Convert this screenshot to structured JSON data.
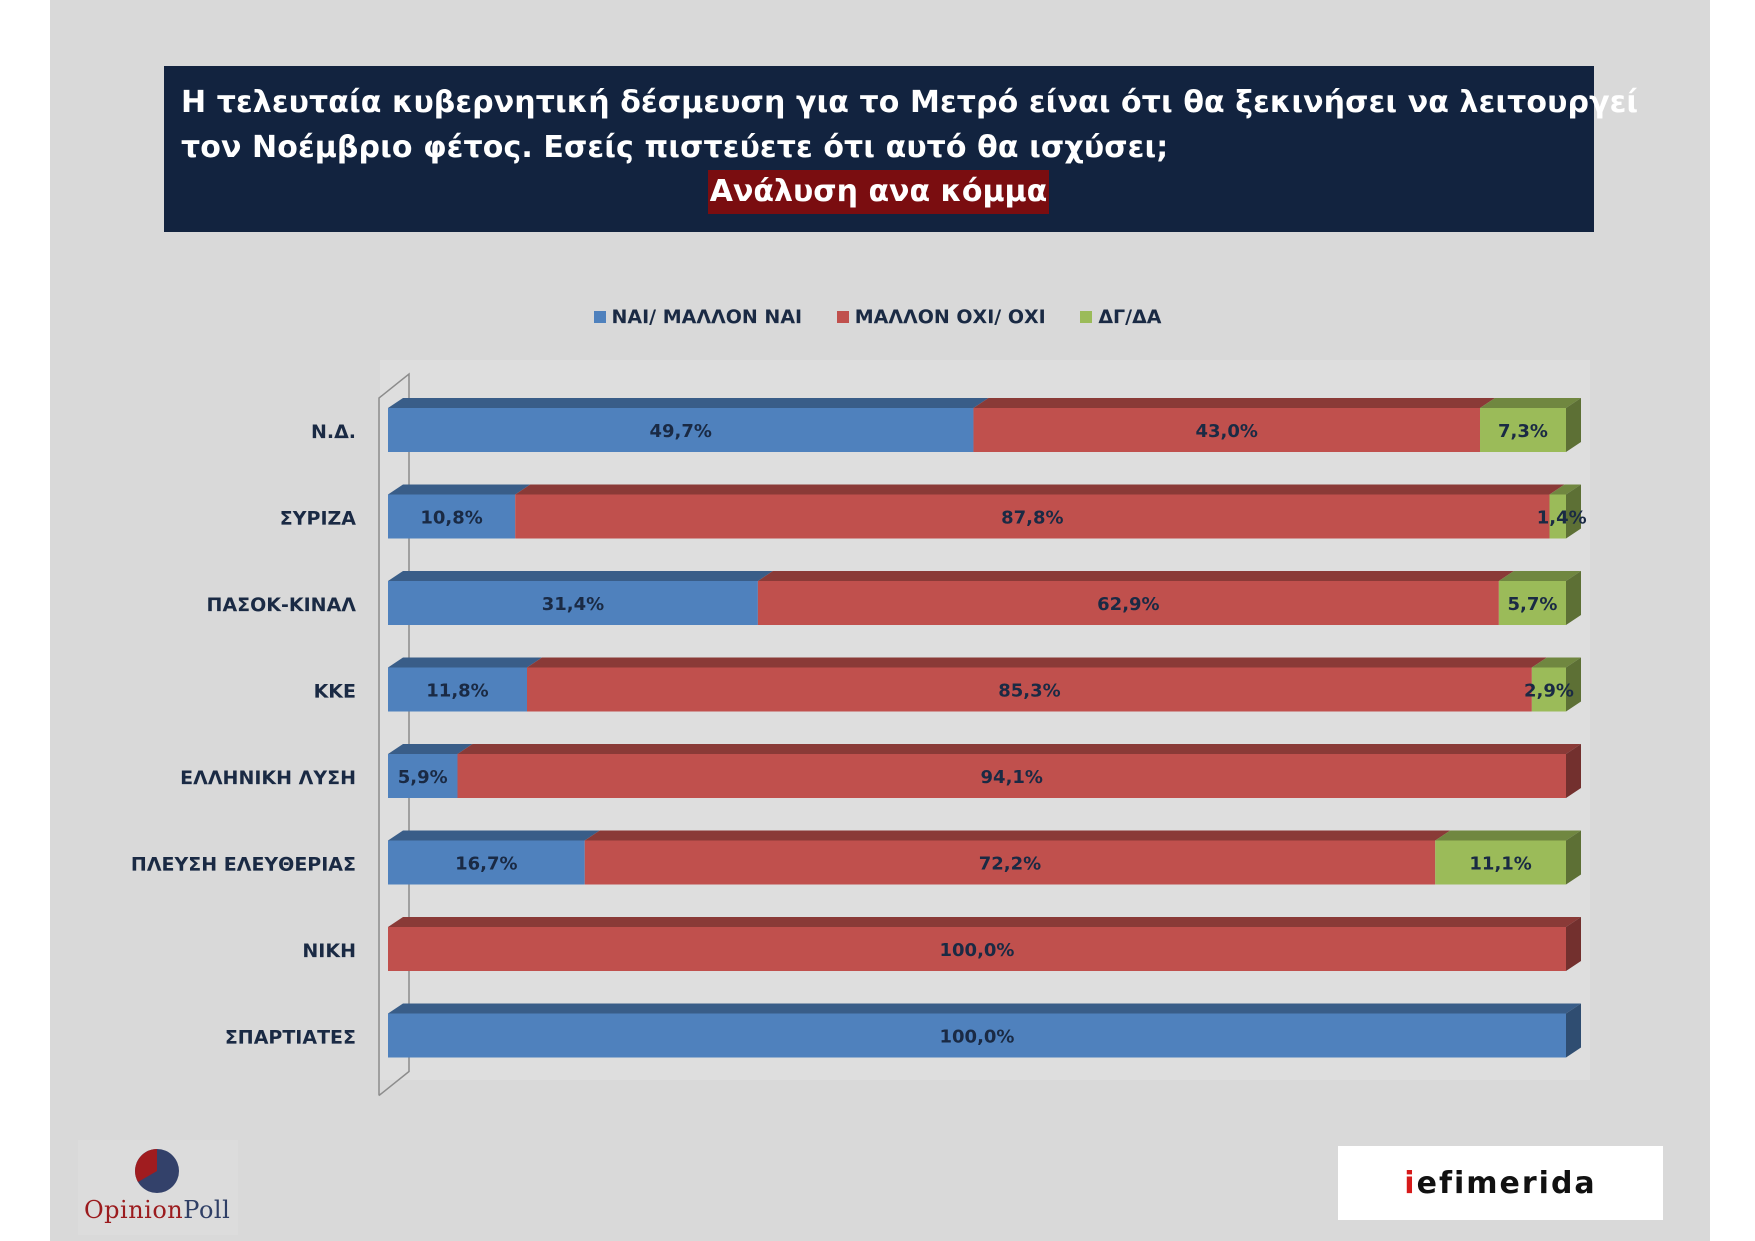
{
  "title": {
    "line1": "Η τελευταία κυβερνητική δέσμευση για το Μετρό είναι ότι θα ξεκινήσει να λειτουργεί",
    "line2": "τον Νοέμβριο φέτος. Εσείς πιστεύετε ότι αυτό θα ισχύσει;",
    "subtitle": "Ανάλυση ανα κόμμα"
  },
  "colors": {
    "yes": "#4f81bd",
    "no": "#c0504d",
    "dk": "#9bbb59",
    "title_bg": "#12233f",
    "subtitle_bg": "#7a0d10",
    "label_text": "#1a2a44"
  },
  "chart_data": {
    "type": "bar",
    "orientation": "horizontal",
    "stacked": "percent",
    "categories": [
      "Ν.Δ.",
      "ΣΥΡΙΖΑ",
      "ΠΑΣΟΚ-ΚΙΝΑΛ",
      "ΚΚΕ",
      "ΕΛΛΗΝΙΚΗ ΛΥΣΗ",
      "ΠΛΕΥΣΗ ΕΛΕΥΘΕΡΙΑΣ",
      "ΝΙΚΗ",
      "ΣΠΑΡΤΙΑΤΕΣ"
    ],
    "series": [
      {
        "name": "ΝΑΙ/ ΜΑΛΛΟΝ ΝΑΙ",
        "key": "yes",
        "values": [
          49.7,
          10.8,
          31.4,
          11.8,
          5.9,
          16.7,
          0,
          100.0
        ],
        "labels": [
          "49,7%",
          "10,8%",
          "31,4%",
          "11,8%",
          "5,9%",
          "16,7%",
          "",
          "100,0%"
        ]
      },
      {
        "name": "ΜΑΛΛΟΝ ΟΧΙ/ ΟΧΙ",
        "key": "no",
        "values": [
          43.0,
          87.8,
          62.9,
          85.3,
          94.1,
          72.2,
          100.0,
          0
        ],
        "labels": [
          "43,0%",
          "87,8%",
          "62,9%",
          "85,3%",
          "94,1%",
          "72,2%",
          "100,0%",
          ""
        ]
      },
      {
        "name": "ΔΓ/ΔΑ",
        "key": "dk",
        "values": [
          7.3,
          1.4,
          5.7,
          2.9,
          0,
          11.1,
          0,
          0
        ],
        "labels": [
          "7,3%",
          "1,4%",
          "5,7%",
          "2,9%",
          "",
          "11,1%",
          "",
          ""
        ]
      }
    ],
    "xlim": [
      0,
      100
    ],
    "legend_position": "top",
    "grid": false,
    "effect": "3d"
  },
  "logos": {
    "left": {
      "part1": "Opinion",
      "part2": "Poll"
    },
    "right": {
      "part1": "i",
      "part2": "efimerida"
    }
  }
}
